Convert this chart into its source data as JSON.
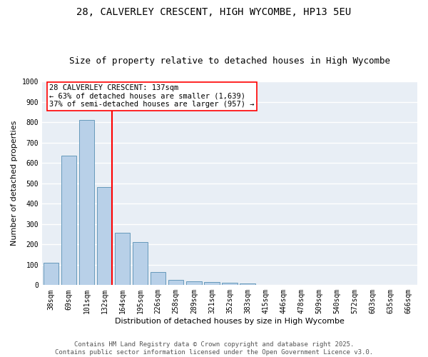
{
  "title_line1": "28, CALVERLEY CRESCENT, HIGH WYCOMBE, HP13 5EU",
  "title_line2": "Size of property relative to detached houses in High Wycombe",
  "xlabel": "Distribution of detached houses by size in High Wycombe",
  "ylabel": "Number of detached properties",
  "categories": [
    "38sqm",
    "69sqm",
    "101sqm",
    "132sqm",
    "164sqm",
    "195sqm",
    "226sqm",
    "258sqm",
    "289sqm",
    "321sqm",
    "352sqm",
    "383sqm",
    "415sqm",
    "446sqm",
    "478sqm",
    "509sqm",
    "540sqm",
    "572sqm",
    "603sqm",
    "635sqm",
    "666sqm"
  ],
  "values": [
    110,
    635,
    810,
    483,
    257,
    210,
    65,
    27,
    20,
    14,
    10,
    7,
    0,
    0,
    0,
    0,
    0,
    0,
    0,
    0,
    0
  ],
  "bar_color": "#b8d0e8",
  "bar_edge_color": "#6699bb",
  "reference_line_color": "red",
  "annotation_text": "28 CALVERLEY CRESCENT: 137sqm\n← 63% of detached houses are smaller (1,639)\n37% of semi-detached houses are larger (957) →",
  "annotation_box_color": "white",
  "annotation_box_edge": "red",
  "ylim": [
    0,
    1000
  ],
  "yticks": [
    0,
    100,
    200,
    300,
    400,
    500,
    600,
    700,
    800,
    900,
    1000
  ],
  "background_color": "#e8eef5",
  "grid_color": "white",
  "footer_text": "Contains HM Land Registry data © Crown copyright and database right 2025.\nContains public sector information licensed under the Open Government Licence v3.0.",
  "title_fontsize": 10,
  "subtitle_fontsize": 9,
  "axis_label_fontsize": 8,
  "tick_fontsize": 7,
  "annotation_fontsize": 7.5,
  "footer_fontsize": 6.5
}
